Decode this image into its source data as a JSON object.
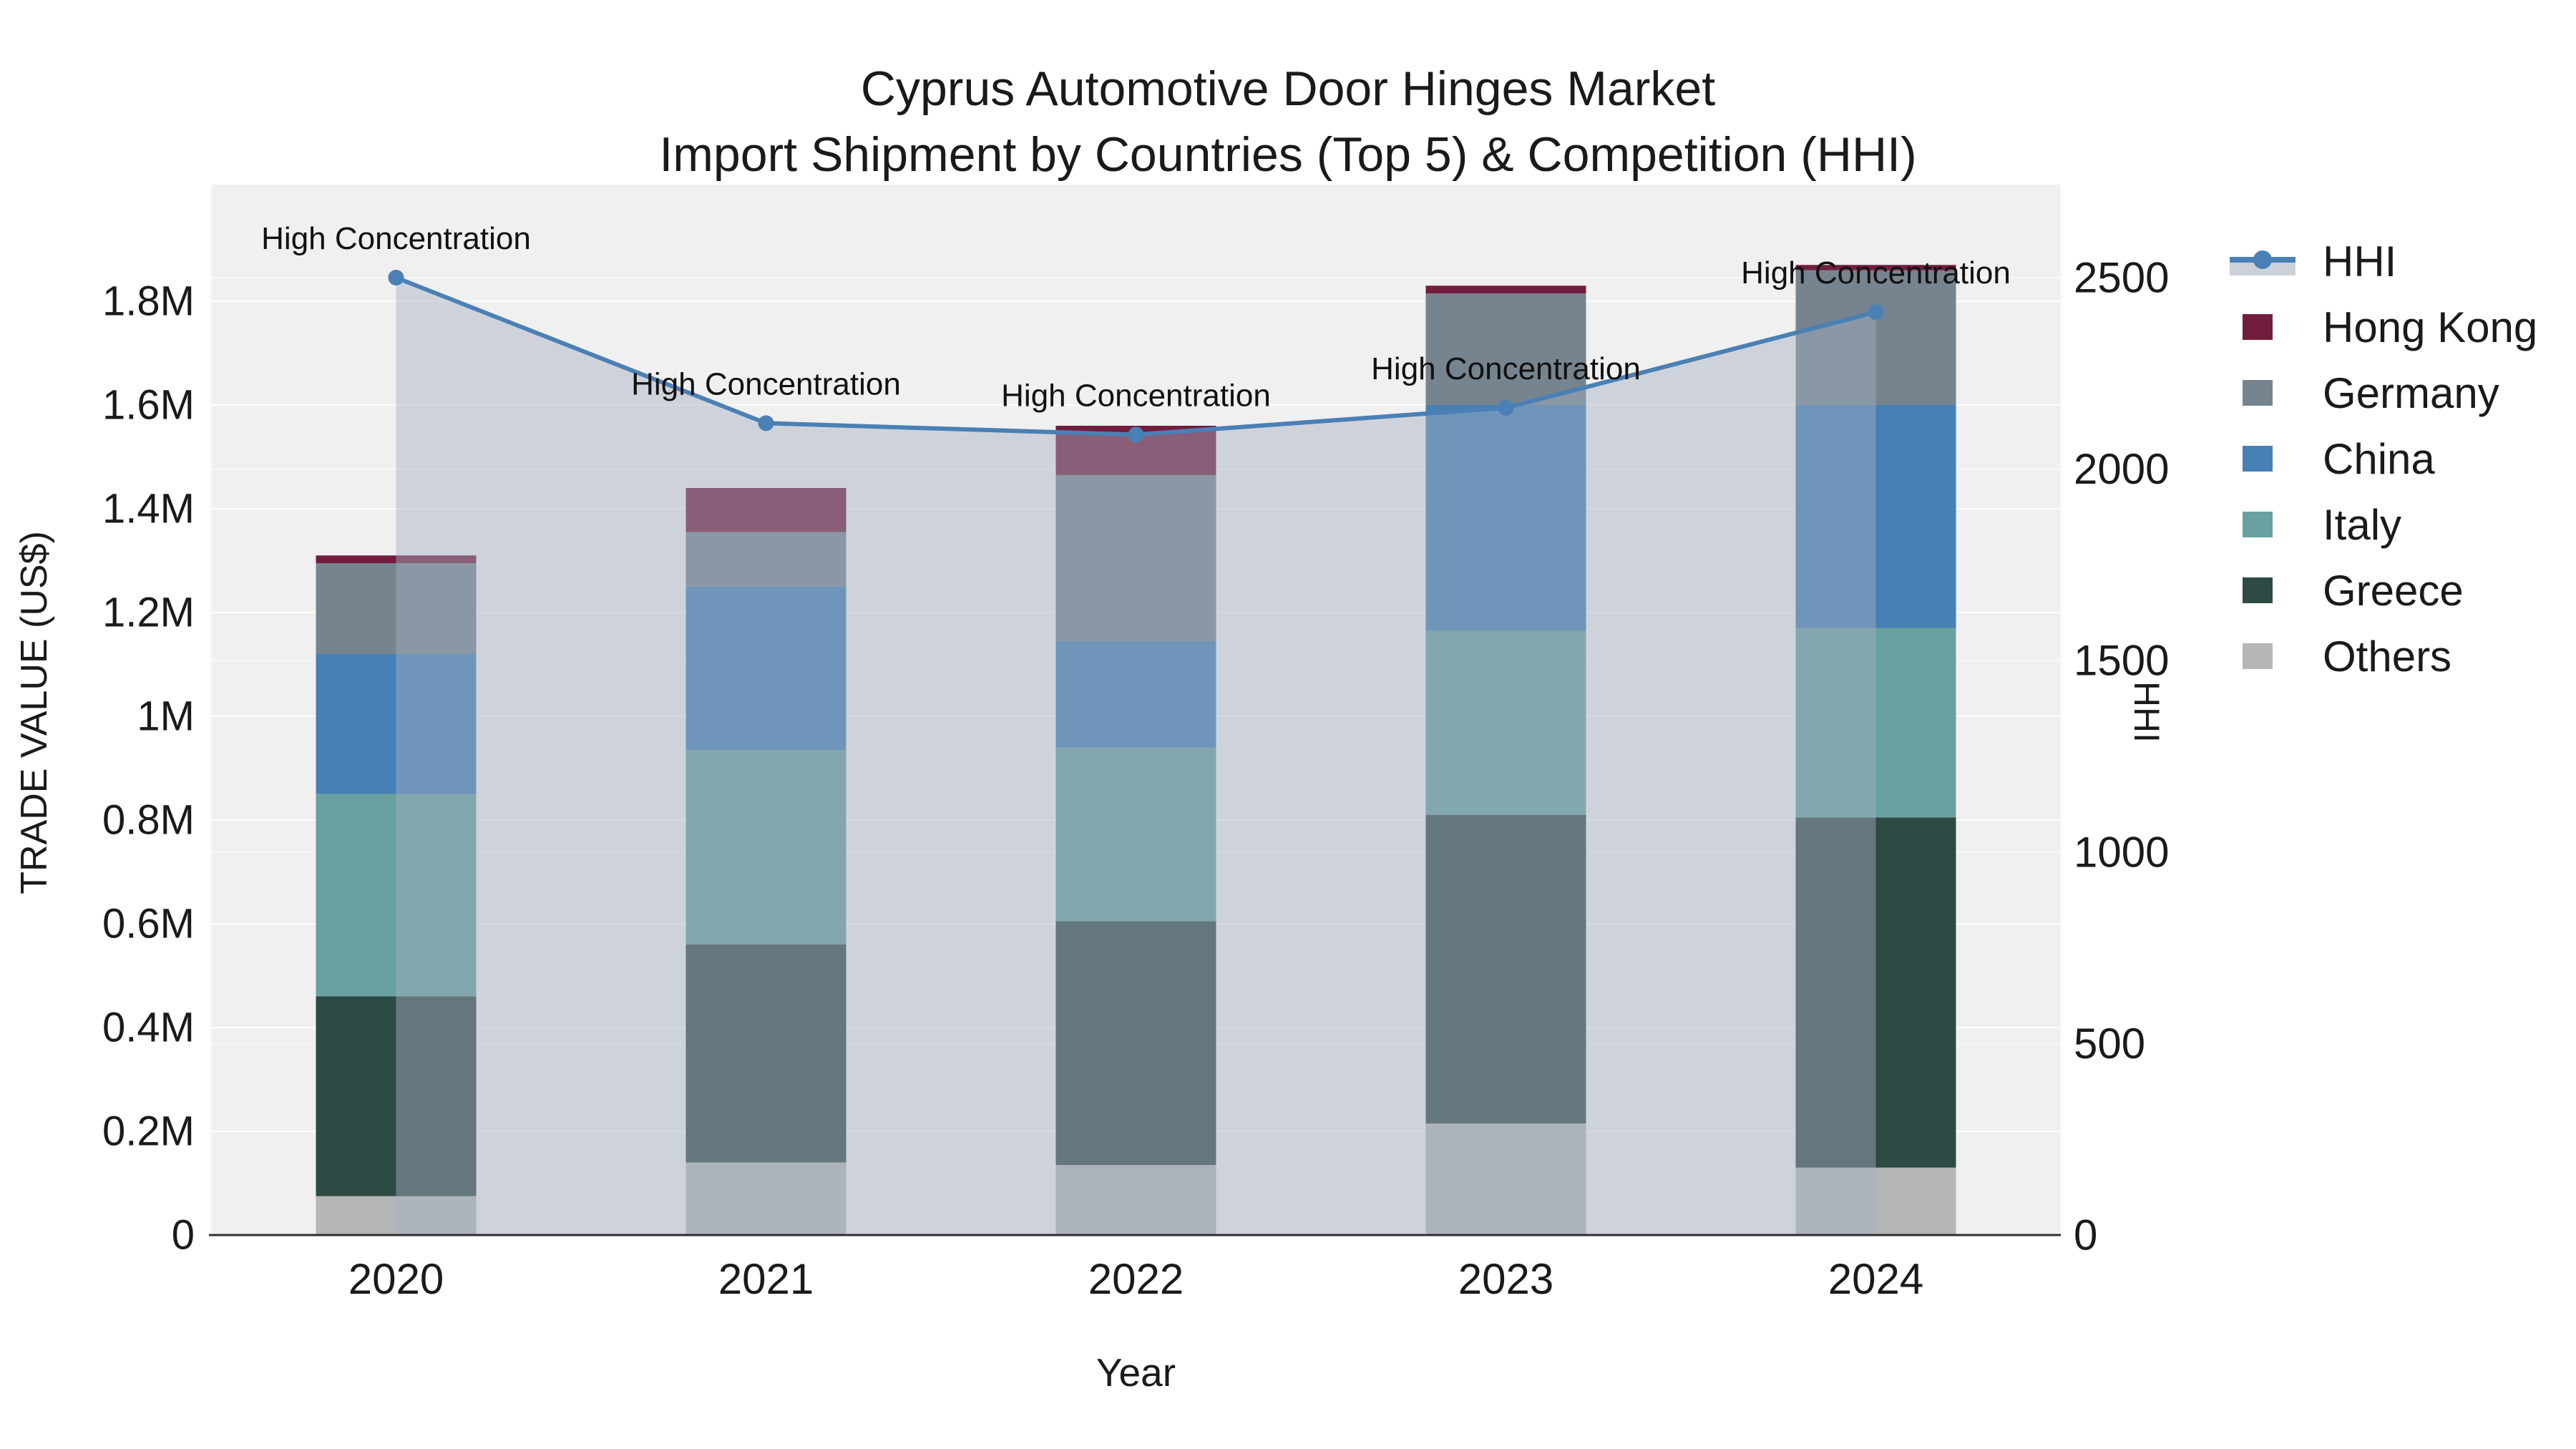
{
  "title": {
    "line1": "Cyprus Automotive Door Hinges Market",
    "line2": "Import Shipment by Countries (Top 5) & Competition (HHI)"
  },
  "colors": {
    "plot_bg": "#f0f0f0",
    "grid": "#ffffff",
    "axis_line": "#2e2e2e",
    "text": "#1a1a1a",
    "hhi_line": "#4a80b5",
    "hhi_area": "rgba(164,176,194,0.45)",
    "hong_kong": "#721d3e",
    "germany": "#76848f",
    "china": "#4680b4",
    "italy": "#68a19f",
    "greece": "#2e4a45",
    "others": "#b4b7b5"
  },
  "legend": {
    "items": [
      {
        "label": "HHI",
        "type": "line",
        "color": "#4a80b5",
        "band_color": "#ccd1d9"
      },
      {
        "label": "Hong Kong",
        "type": "patch",
        "color": "#721d3e"
      },
      {
        "label": "Germany",
        "type": "patch",
        "color": "#76848f"
      },
      {
        "label": "China",
        "type": "patch",
        "color": "#4680b4"
      },
      {
        "label": "Italy",
        "type": "patch",
        "color": "#68a19f"
      },
      {
        "label": "Greece",
        "type": "patch",
        "color": "#2e4a45"
      },
      {
        "label": "Others",
        "type": "patch",
        "color": "#b4b7b5"
      }
    ]
  },
  "chart_data": {
    "type": "bar",
    "subtype": "stacked-bar-with-line",
    "categories": [
      "2020",
      "2021",
      "2022",
      "2023",
      "2024"
    ],
    "title": "Cyprus Automotive Door Hinges Market — Import Shipment by Countries (Top 5) & Competition (HHI)",
    "xlabel": "Year",
    "ylabel_left": "TRADE VALUE (US$)",
    "ylabel_right": "HHI",
    "units_left": "millions of US$",
    "grid": true,
    "legend_position": "right",
    "series": [
      {
        "name": "Others",
        "color": "#b4b7b5",
        "values": [
          0.075,
          0.14,
          0.135,
          0.215,
          0.13
        ]
      },
      {
        "name": "Greece",
        "color": "#2e4a45",
        "values": [
          0.385,
          0.42,
          0.47,
          0.595,
          0.675
        ]
      },
      {
        "name": "Italy",
        "color": "#68a19f",
        "values": [
          0.39,
          0.375,
          0.335,
          0.355,
          0.365
        ]
      },
      {
        "name": "China",
        "color": "#4680b4",
        "values": [
          0.27,
          0.315,
          0.205,
          0.435,
          0.43
        ]
      },
      {
        "name": "Germany",
        "color": "#76848f",
        "values": [
          0.175,
          0.105,
          0.32,
          0.215,
          0.26
        ]
      },
      {
        "name": "Hong Kong",
        "color": "#721d3e",
        "values": [
          0.015,
          0.085,
          0.095,
          0.015,
          0.01
        ]
      }
    ],
    "bar_totals": [
      1.31,
      1.44,
      1.56,
      1.83,
      1.87
    ],
    "line": {
      "name": "HHI",
      "color": "#4a80b5",
      "area_fill": "rgba(164,176,194,0.45)",
      "values": [
        2500,
        2120,
        2090,
        2160,
        2410
      ]
    },
    "annotation_text": "High Concentration",
    "annotated_points": [
      0,
      1,
      2,
      3,
      4
    ],
    "left_axis": {
      "label": "TRADE VALUE (US$)",
      "range": [
        0,
        2.02
      ],
      "ticks": [
        {
          "value": 0,
          "label": "0"
        },
        {
          "value": 0.2,
          "label": "0.2M"
        },
        {
          "value": 0.4,
          "label": "0.4M"
        },
        {
          "value": 0.6,
          "label": "0.6M"
        },
        {
          "value": 0.8,
          "label": "0.8M"
        },
        {
          "value": 1.0,
          "label": "1M"
        },
        {
          "value": 1.2,
          "label": "1.2M"
        },
        {
          "value": 1.4,
          "label": "1.4M"
        },
        {
          "value": 1.6,
          "label": "1.6M"
        },
        {
          "value": 1.8,
          "label": "1.8M"
        }
      ]
    },
    "right_axis": {
      "label": "HHI",
      "range": [
        0,
        2743
      ],
      "ticks": [
        {
          "value": 0,
          "label": "0"
        },
        {
          "value": 500,
          "label": "500"
        },
        {
          "value": 1000,
          "label": "1000"
        },
        {
          "value": 1500,
          "label": "1500"
        },
        {
          "value": 2000,
          "label": "2000"
        },
        {
          "value": 2500,
          "label": "2500"
        }
      ]
    },
    "x_axis": {
      "label": "Year"
    }
  }
}
